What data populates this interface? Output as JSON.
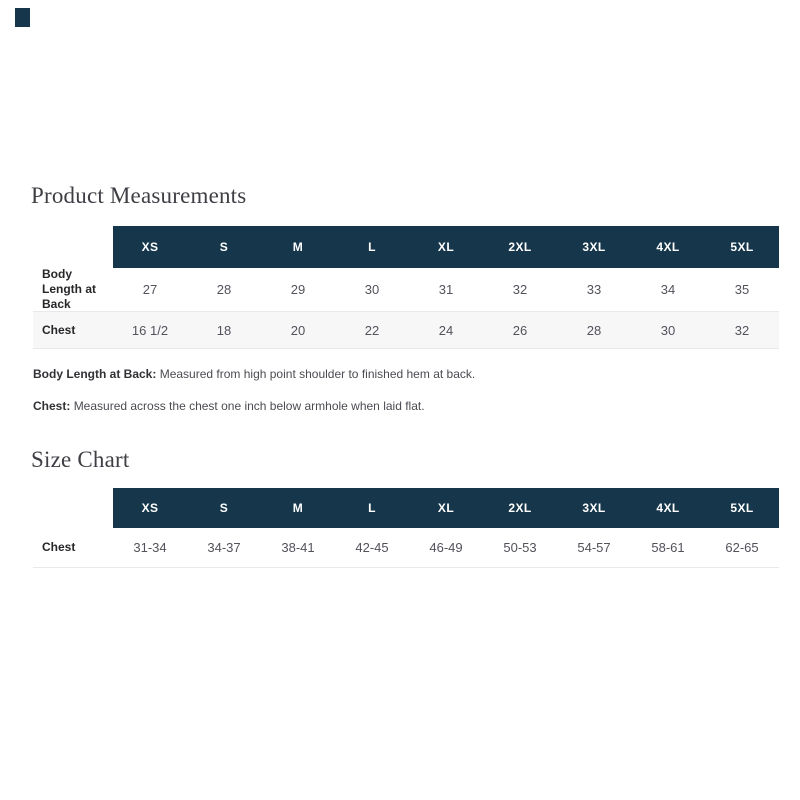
{
  "colors": {
    "header_bg": "#16374b",
    "header_text": "#ffffff",
    "stripe_bg": "#f7f7f8",
    "border": "#e9e9eb",
    "heading_text": "#3e3e44",
    "value_text": "#52525b"
  },
  "product_measurements": {
    "title": "Product Measurements",
    "sizes": [
      "XS",
      "S",
      "M",
      "L",
      "XL",
      "2XL",
      "3XL",
      "4XL",
      "5XL"
    ],
    "rows": [
      {
        "label": "Body Length at Back",
        "values": [
          "27",
          "28",
          "29",
          "30",
          "31",
          "32",
          "33",
          "34",
          "35"
        ]
      },
      {
        "label": "Chest",
        "values": [
          "16 1/2",
          "18",
          "20",
          "22",
          "24",
          "26",
          "28",
          "30",
          "32"
        ]
      }
    ],
    "notes": [
      {
        "label": "Body Length at Back:",
        "text": "Measured from high point shoulder to finished hem at back."
      },
      {
        "label": "Chest:",
        "text": "Measured across the chest one inch below armhole when laid flat."
      }
    ]
  },
  "size_chart": {
    "title": "Size Chart",
    "sizes": [
      "XS",
      "S",
      "M",
      "L",
      "XL",
      "2XL",
      "3XL",
      "4XL",
      "5XL"
    ],
    "rows": [
      {
        "label": "Chest",
        "values": [
          "31-34",
          "34-37",
          "38-41",
          "42-45",
          "46-49",
          "50-53",
          "54-57",
          "58-61",
          "62-65"
        ]
      }
    ]
  }
}
